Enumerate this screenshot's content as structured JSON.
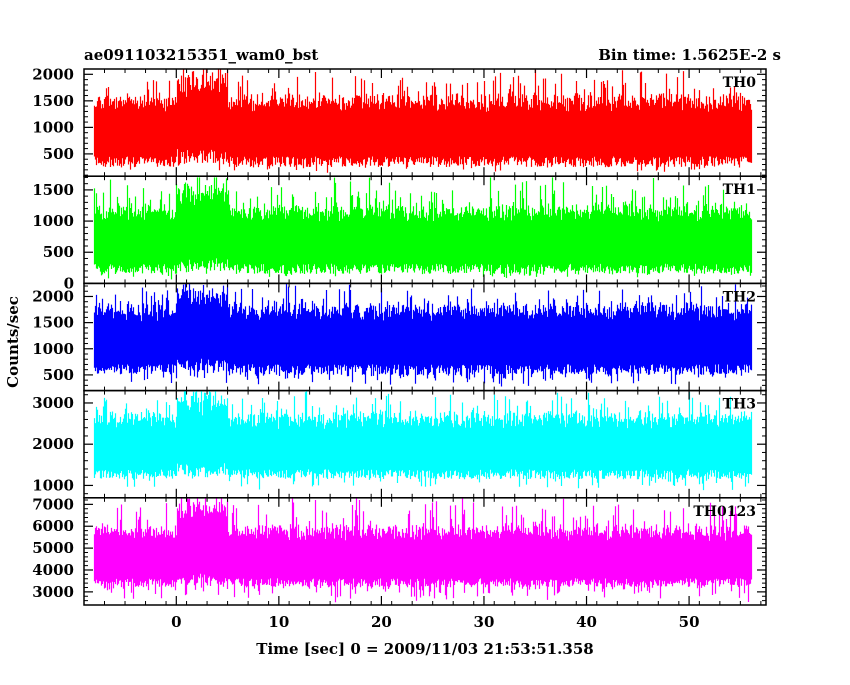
{
  "chart_data": {
    "type": "line",
    "title_left": "ae091103215351_wam0_bst",
    "title_right": "Bin time: 1.5625E-2 s",
    "xlabel": "Time [sec] 0 = 2009/11/03 21:53:51.358",
    "ylabel": "Counts/sec",
    "xlim": [
      -9,
      57.5
    ],
    "x_data_range": [
      -8,
      56
    ],
    "xticks": [
      0,
      10,
      20,
      30,
      40,
      50
    ],
    "grid": false,
    "panels": [
      {
        "label": "TH0",
        "color": "#ff0000",
        "ylim": [
          80,
          2100
        ],
        "yticks": [
          500,
          1000,
          1500,
          2000
        ],
        "typical_min": 250,
        "typical_max": 1600,
        "peak_max": 2100,
        "floor_min": 120,
        "flare_x": [
          0,
          5
        ]
      },
      {
        "label": "TH1",
        "color": "#00ff00",
        "ylim": [
          0,
          1720
        ],
        "yticks": [
          0,
          500,
          1000,
          1500
        ],
        "typical_min": 150,
        "typical_max": 1250,
        "peak_max": 1700,
        "floor_min": 60,
        "flare_x": [
          0,
          5
        ]
      },
      {
        "label": "TH2",
        "color": "#0000ff",
        "ylim": [
          200,
          2250
        ],
        "yticks": [
          500,
          1000,
          1500,
          2000
        ],
        "typical_min": 500,
        "typical_max": 1850,
        "peak_max": 2250,
        "floor_min": 250,
        "flare_x": [
          0,
          5
        ]
      },
      {
        "label": "TH3",
        "color": "#00ffff",
        "ylim": [
          700,
          3300
        ],
        "yticks": [
          1000,
          2000,
          3000
        ],
        "typical_min": 1150,
        "typical_max": 2750,
        "peak_max": 3300,
        "floor_min": 850,
        "flare_x": [
          0,
          5
        ]
      },
      {
        "label": "TH0123",
        "color": "#ff00ff",
        "ylim": [
          2400,
          7300
        ],
        "yticks": [
          3000,
          4000,
          5000,
          6000,
          7000
        ],
        "typical_min": 3200,
        "typical_max": 6000,
        "peak_max": 7300,
        "floor_min": 2500,
        "flare_x": [
          0,
          5
        ]
      }
    ]
  }
}
